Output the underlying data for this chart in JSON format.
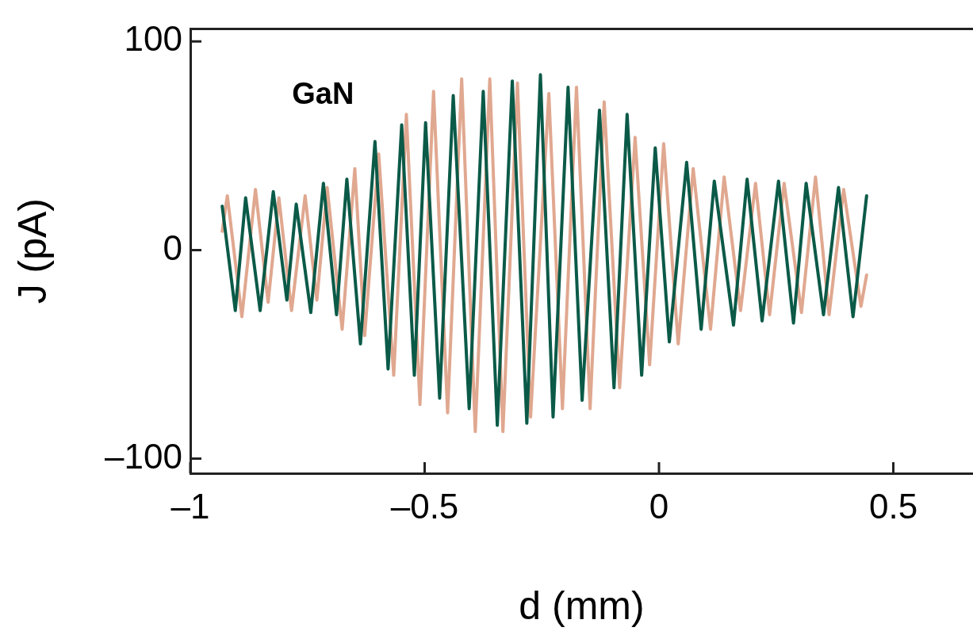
{
  "chart_data": {
    "type": "line",
    "xlabel": "d (mm)",
    "ylabel": "J (pA)",
    "annotations": [
      "GaN"
    ],
    "xlim": [
      -1,
      0.67
    ],
    "xticks": [
      {
        "value": -1,
        "label": "–1"
      },
      {
        "value": -0.5,
        "label": "–0.5"
      },
      0,
      0.5
    ],
    "ylim": [
      -107,
      106
    ],
    "yticks": [
      {
        "value": -100,
        "label": "–100"
      },
      0,
      100
    ],
    "grid": false,
    "legend": false,
    "marker": "none",
    "line_style": "solid",
    "series": [
      {
        "color": "#0b5a48",
        "x": [
          -0.932,
          -0.904,
          -0.882,
          -0.851,
          -0.823,
          -0.794,
          -0.774,
          -0.743,
          -0.716,
          -0.688,
          -0.666,
          -0.637,
          -0.606,
          -0.578,
          -0.549,
          -0.522,
          -0.498,
          -0.468,
          -0.439,
          -0.405,
          -0.375,
          -0.345,
          -0.313,
          -0.282,
          -0.253,
          -0.226,
          -0.194,
          -0.164,
          -0.127,
          -0.096,
          -0.068,
          -0.037,
          -0.008,
          0.022,
          0.059,
          0.09,
          0.118,
          0.159,
          0.188,
          0.22,
          0.255,
          0.287,
          0.314,
          0.351,
          0.383,
          0.414,
          0.443
        ],
        "values": [
          21,
          -29,
          25,
          -29,
          28,
          -24,
          22,
          -30,
          32,
          -31,
          34,
          -45,
          52,
          -57,
          60,
          -60,
          61,
          -71,
          74,
          -76,
          76,
          -84,
          81,
          -83,
          84,
          -80,
          78,
          -72,
          67,
          -66,
          65,
          -60,
          49,
          -44,
          42,
          -38,
          33,
          -36,
          34,
          -34,
          33,
          -35,
          32,
          -31,
          30,
          -32,
          26
        ]
      },
      {
        "color": "#e0a890",
        "x": [
          -0.932,
          -0.921,
          -0.89,
          -0.861,
          -0.834,
          -0.811,
          -0.784,
          -0.755,
          -0.73,
          -0.708,
          -0.676,
          -0.649,
          -0.628,
          -0.598,
          -0.566,
          -0.539,
          -0.51,
          -0.481,
          -0.451,
          -0.421,
          -0.392,
          -0.361,
          -0.333,
          -0.302,
          -0.274,
          -0.235,
          -0.206,
          -0.176,
          -0.147,
          -0.117,
          -0.084,
          -0.051,
          -0.02,
          0.01,
          0.041,
          0.073,
          0.11,
          0.139,
          0.174,
          0.206,
          0.236,
          0.267,
          0.304,
          0.334,
          0.363,
          0.394,
          0.431,
          0.443
        ],
        "values": [
          9,
          26,
          -32,
          29,
          -25,
          25,
          -29,
          26,
          -24,
          30,
          -38,
          39,
          -41,
          46,
          -60,
          65,
          -74,
          76,
          -78,
          82,
          -87,
          82,
          -87,
          80,
          -80,
          75,
          -76,
          78,
          -76,
          71,
          -66,
          54,
          -55,
          51,
          -45,
          39,
          -38,
          35,
          -29,
          32,
          -31,
          32,
          -30,
          35,
          -31,
          29,
          -27,
          -12
        ]
      }
    ]
  }
}
